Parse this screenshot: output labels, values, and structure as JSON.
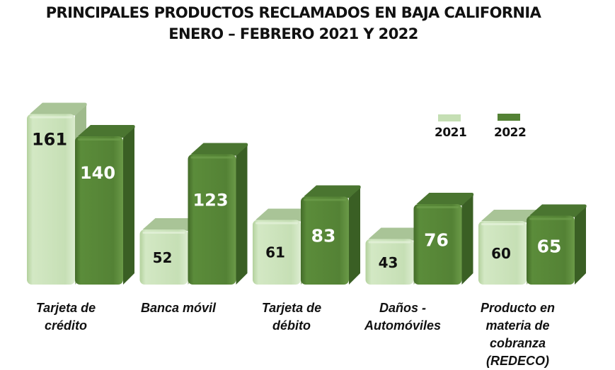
{
  "chart_data": {
    "type": "bar",
    "title": "PRINCIPALES PRODUCTOS RECLAMADOS EN BAJA CALIFORNIA",
    "subtitle": "ENERO – FEBRERO 2021 Y 2022",
    "xlabel": "",
    "ylabel": "",
    "ylim": [
      0,
      170
    ],
    "grid": false,
    "legend_position": "top-right",
    "categories": [
      "Tarjeta de\ncrédito",
      "Banca móvil",
      "Tarjeta de\ndébito",
      "Daños -\nAutomóviles",
      "Producto en\nmateria de\ncobranza\n(REDECO)"
    ],
    "series": [
      {
        "name": "2021",
        "color": "#c5dfb4",
        "label_color": "#111111",
        "values": [
          161,
          52,
          61,
          43,
          60
        ]
      },
      {
        "name": "2022",
        "color": "#548235",
        "label_color": "#ffffff",
        "values": [
          140,
          123,
          83,
          76,
          65
        ]
      }
    ]
  }
}
